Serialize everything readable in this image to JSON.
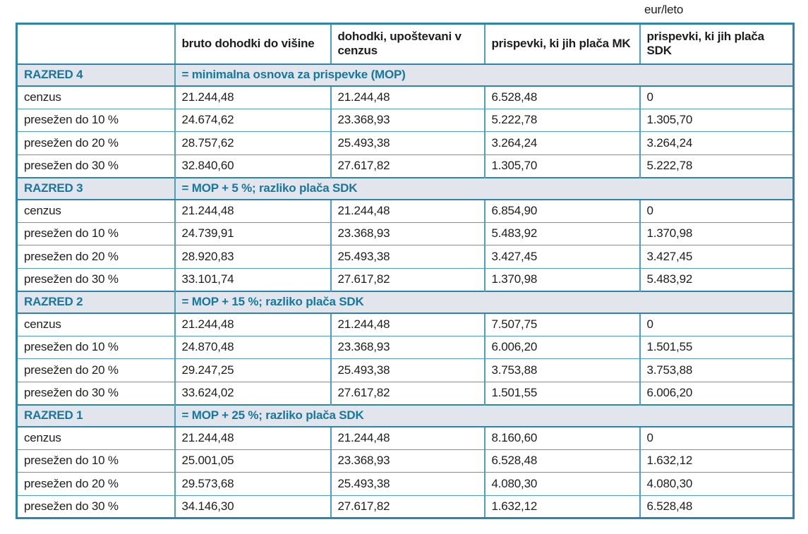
{
  "unit_label": "eur/leto",
  "table": {
    "columns": [
      "",
      "bruto dohodki do višine",
      "dohodki, upoštevani v cenzus",
      "prispevki, ki jih plača MK",
      "prispevki, ki jih plača SDK"
    ],
    "sections": [
      {
        "name": "RAZRED 4",
        "description": "= minimalna osnova za prispevke (MOP)",
        "rows": [
          {
            "label": "cenzus",
            "values": [
              "21.244,48",
              "21.244,48",
              "6.528,48",
              "0"
            ]
          },
          {
            "label": "presežen do 10 %",
            "values": [
              "24.674,62",
              "23.368,93",
              "5.222,78",
              "1.305,70"
            ]
          },
          {
            "label": "presežen do 20 %",
            "values": [
              "28.757,62",
              "25.493,38",
              "3.264,24",
              "3.264,24"
            ]
          },
          {
            "label": "presežen do 30 %",
            "values": [
              "32.840,60",
              "27.617,82",
              "1.305,70",
              "5.222,78"
            ]
          }
        ]
      },
      {
        "name": "RAZRED 3",
        "description": "= MOP + 5 %; razliko plača SDK",
        "rows": [
          {
            "label": "cenzus",
            "values": [
              "21.244,48",
              "21.244,48",
              "6.854,90",
              "0"
            ]
          },
          {
            "label": "presežen do 10 %",
            "values": [
              "24.739,91",
              "23.368,93",
              "5.483,92",
              "1.370,98"
            ]
          },
          {
            "label": "presežen do 20 %",
            "values": [
              "28.920,83",
              "25.493,38",
              "3.427,45",
              "3.427,45"
            ]
          },
          {
            "label": "presežen do 30 %",
            "values": [
              "33.101,74",
              "27.617,82",
              "1.370,98",
              "5.483,92"
            ]
          }
        ]
      },
      {
        "name": "RAZRED 2",
        "description": "= MOP + 15 %; razliko plača SDK",
        "rows": [
          {
            "label": "cenzus",
            "values": [
              "21.244,48",
              "21.244,48",
              "7.507,75",
              "0"
            ]
          },
          {
            "label": "presežen do 10 %",
            "values": [
              "24.870,48",
              "23.368,93",
              "6.006,20",
              "1.501,55"
            ]
          },
          {
            "label": "presežen do 20 %",
            "values": [
              "29.247,25",
              "25.493,38",
              "3.753,88",
              "3.753,88"
            ]
          },
          {
            "label": "presežen do 30 %",
            "values": [
              "33.624,02",
              "27.617,82",
              "1.501,55",
              "6.006,20"
            ]
          }
        ]
      },
      {
        "name": "RAZRED 1",
        "description": "= MOP + 25 %; razliko plača SDK",
        "rows": [
          {
            "label": "cenzus",
            "values": [
              "21.244,48",
              "21.244,48",
              "8.160,60",
              "0"
            ]
          },
          {
            "label": "presežen do 10 %",
            "values": [
              "25.001,05",
              "23.368,93",
              "6.528,48",
              "1.632,12"
            ]
          },
          {
            "label": "presežen do 20 %",
            "values": [
              "29.573,68",
              "25.493,38",
              "4.080,30",
              "4.080,30"
            ]
          },
          {
            "label": "presežen do 30 %",
            "values": [
              "34.146,30",
              "27.617,82",
              "1.632,12",
              "6.528,48"
            ]
          }
        ]
      }
    ]
  },
  "colors": {
    "border_strong": "#2d86a9",
    "border_light": "#49a0c0",
    "section_bg": "#e2e6ec",
    "section_text": "#17779e",
    "text": "#1d1d1b"
  }
}
